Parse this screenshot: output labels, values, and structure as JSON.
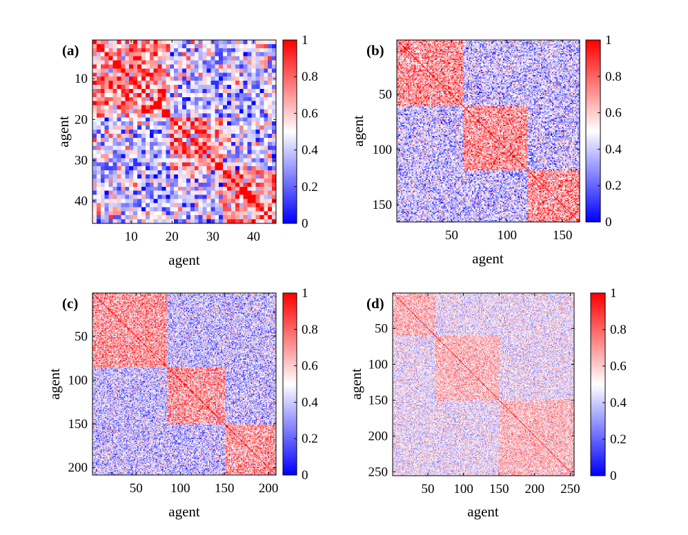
{
  "chart_data": [
    {
      "type": "heatmap",
      "panel_label": "(a)",
      "n": 45,
      "xlabel": "agent",
      "ylabel": "agent",
      "x_ticks": [
        10,
        20,
        30,
        40
      ],
      "y_ticks": [
        10,
        20,
        30,
        40
      ],
      "xlim": [
        0.5,
        45.5
      ],
      "ylim": [
        0.5,
        45.5
      ],
      "communities": [
        [
          1,
          19
        ],
        [
          20,
          32
        ],
        [
          33,
          45
        ]
      ],
      "within_mean": 0.7,
      "between_mean": 0.42,
      "noise": 0.3,
      "colorbar": {
        "min": 0,
        "max": 1,
        "ticks": [
          0,
          0.2,
          0.4,
          0.6,
          0.8,
          1
        ],
        "tick_labels": [
          "0",
          "0.2",
          "0.4",
          "0.6",
          "0.8",
          "1"
        ]
      }
    },
    {
      "type": "heatmap",
      "panel_label": "(b)",
      "n": 165,
      "xlabel": "agent",
      "ylabel": "agent",
      "x_ticks": [
        50,
        100,
        150
      ],
      "y_ticks": [
        50,
        100,
        150
      ],
      "xlim": [
        0.5,
        165.5
      ],
      "ylim": [
        0.5,
        165.5
      ],
      "communities": [
        [
          1,
          60
        ],
        [
          61,
          118
        ],
        [
          119,
          165
        ]
      ],
      "within_mean": 0.7,
      "between_mean": 0.4,
      "noise": 0.25,
      "colorbar": {
        "min": 0,
        "max": 1,
        "ticks": [
          0,
          0.2,
          0.4,
          0.6,
          0.8,
          1
        ],
        "tick_labels": [
          "0",
          "0.2",
          "0.4",
          "0.6",
          "0.8",
          "1"
        ]
      }
    },
    {
      "type": "heatmap",
      "panel_label": "(c)",
      "n": 208,
      "xlabel": "agent",
      "ylabel": "agent",
      "x_ticks": [
        50,
        100,
        150,
        200
      ],
      "y_ticks": [
        50,
        100,
        150,
        200
      ],
      "xlim": [
        0.5,
        208.5
      ],
      "ylim": [
        0.5,
        208.5
      ],
      "communities": [
        [
          1,
          85
        ],
        [
          86,
          150
        ],
        [
          151,
          208
        ]
      ],
      "within_mean": 0.68,
      "between_mean": 0.4,
      "noise": 0.25,
      "colorbar": {
        "min": 0,
        "max": 1,
        "ticks": [
          0,
          0.2,
          0.4,
          0.6,
          0.8,
          1
        ],
        "tick_labels": [
          "0",
          "0.2",
          "0.4",
          "0.6",
          "0.8",
          "1"
        ]
      }
    },
    {
      "type": "heatmap",
      "panel_label": "(d)",
      "n": 255,
      "xlabel": "agent",
      "ylabel": "agent",
      "x_ticks": [
        50,
        100,
        150,
        200,
        250
      ],
      "y_ticks": [
        50,
        100,
        150,
        200,
        250
      ],
      "xlim": [
        0.5,
        255.5
      ],
      "ylim": [
        0.5,
        255.5
      ],
      "communities": [
        [
          1,
          60
        ],
        [
          61,
          150
        ],
        [
          151,
          255
        ]
      ],
      "within_mean": 0.62,
      "between_mean": 0.48,
      "noise": 0.2,
      "colorbar": {
        "min": 0,
        "max": 1,
        "ticks": [
          0,
          0.2,
          0.4,
          0.6,
          0.8,
          1
        ],
        "tick_labels": [
          "0",
          "0.2",
          "0.4",
          "0.6",
          "0.8",
          "1"
        ]
      }
    }
  ],
  "colormap": {
    "low": "#0000ff",
    "mid": "#ffffff",
    "high": "#ff0000",
    "mid_value": 0.5
  }
}
